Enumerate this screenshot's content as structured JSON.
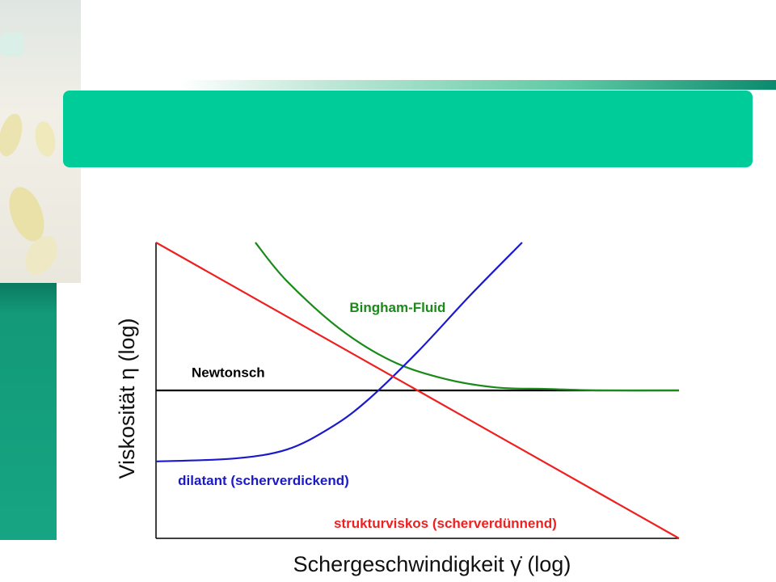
{
  "slide": {
    "title": "",
    "colors": {
      "title_bar": "#00cc99",
      "sidebar": "#16a583"
    }
  },
  "chart_data": {
    "type": "line",
    "title": "",
    "xlabel": "Schergeschwindigkeit γ̇ (log)",
    "ylabel": "Viskosität η (log)",
    "x_scale": "log",
    "y_scale": "log",
    "xlim": [
      0,
      1
    ],
    "ylim": [
      0,
      1
    ],
    "x_ticks": [],
    "y_ticks": [],
    "grid": false,
    "legend": "none",
    "series": [
      {
        "name": "Newtonsch",
        "color": "#000000",
        "x": [
          0.0,
          1.0
        ],
        "y": [
          0.5,
          0.5
        ]
      },
      {
        "name": "Bingham-Fluid",
        "color": "#1a8a1a",
        "x": [
          0.19,
          0.25,
          0.35,
          0.45,
          0.55,
          0.65,
          0.75,
          0.85,
          1.0
        ],
        "y": [
          1.0,
          0.87,
          0.71,
          0.6,
          0.54,
          0.51,
          0.505,
          0.5,
          0.5
        ]
      },
      {
        "name": "dilatant (scherverdickend)",
        "color": "#1a1acc",
        "x": [
          0.0,
          0.15,
          0.25,
          0.33,
          0.4,
          0.5,
          0.6,
          0.7
        ],
        "y": [
          0.26,
          0.27,
          0.3,
          0.37,
          0.46,
          0.63,
          0.82,
          1.0
        ]
      },
      {
        "name": "strukturviskos (scherverdünnend)",
        "color": "#ee2020",
        "x": [
          0.0,
          1.0
        ],
        "y": [
          1.0,
          0.0
        ]
      }
    ]
  }
}
